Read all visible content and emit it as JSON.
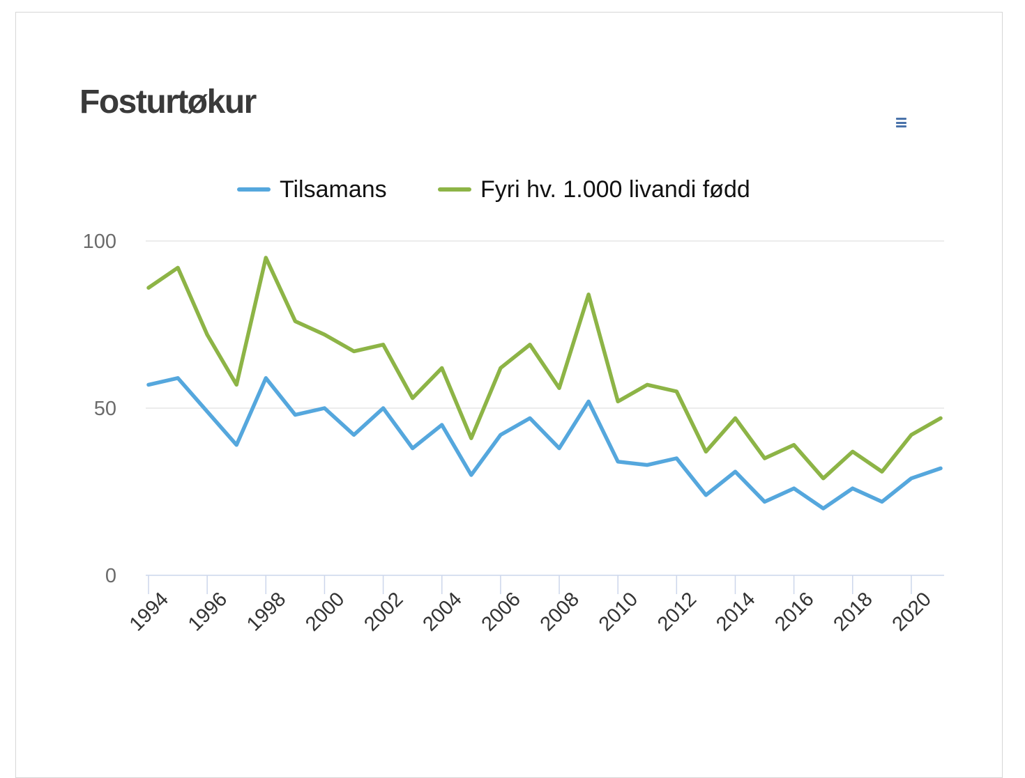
{
  "header": {
    "title": "Fosturtøkur"
  },
  "menu": {
    "icon": "hamburger-context-menu",
    "color": "#4a73aa"
  },
  "legend": [
    {
      "label": "Tilsamans",
      "color": "#55a7dd"
    },
    {
      "label": "Fyri hv. 1.000 livandi fødd",
      "color": "#8db446"
    }
  ],
  "chart_data": {
    "type": "line",
    "title": "Fosturtøkur",
    "x": [
      1994,
      1995,
      1996,
      1997,
      1998,
      1999,
      2000,
      2001,
      2002,
      2003,
      2004,
      2005,
      2006,
      2007,
      2008,
      2009,
      2010,
      2011,
      2012,
      2013,
      2014,
      2015,
      2016,
      2017,
      2018,
      2019,
      2020,
      2021
    ],
    "series": [
      {
        "name": "Tilsamans",
        "color": "#55a7dd",
        "values": [
          57,
          59,
          49,
          39,
          59,
          48,
          50,
          42,
          50,
          38,
          45,
          30,
          42,
          47,
          38,
          52,
          34,
          33,
          35,
          24,
          31,
          22,
          26,
          20,
          26,
          22,
          29,
          32
        ]
      },
      {
        "name": "Fyri hv. 1.000 livandi fødd",
        "color": "#8db446",
        "values": [
          86,
          92,
          72,
          57,
          95,
          76,
          72,
          67,
          69,
          53,
          62,
          41,
          62,
          69,
          56,
          84,
          52,
          57,
          55,
          37,
          47,
          35,
          39,
          29,
          37,
          31,
          42,
          47
        ]
      }
    ],
    "xlabel": "",
    "ylabel": "",
    "ylim": [
      0,
      100
    ],
    "yticks": [
      0,
      50,
      100
    ],
    "xticks": [
      1994,
      1996,
      1998,
      2000,
      2002,
      2004,
      2006,
      2008,
      2010,
      2012,
      2014,
      2016,
      2018,
      2020
    ],
    "grid": true,
    "legend_position": "top",
    "grid_color": "#e6e6e6",
    "axis_color": "#ccd6eb",
    "ylabel_color": "#6b6b6b",
    "xlabel_color": "#333333"
  }
}
